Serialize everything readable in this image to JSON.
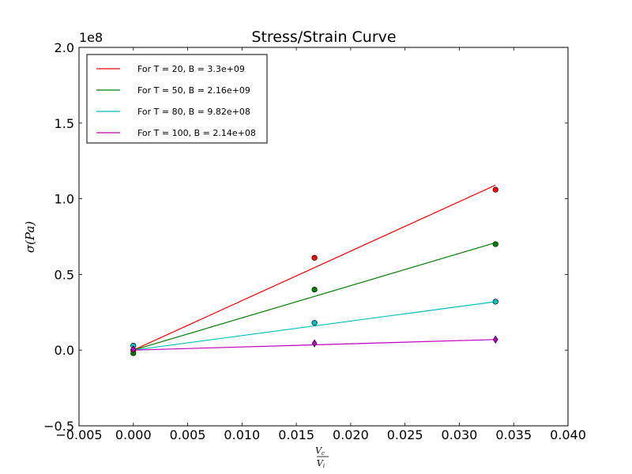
{
  "chart_data": {
    "type": "scatter",
    "title": "Stress/Strain Curve",
    "xlabel": {
      "numerator": "V",
      "numerator_sub": "c",
      "denominator": "V",
      "denominator_sub": "i"
    },
    "ylabel": "σ(Pa)",
    "xlim": [
      -0.005,
      0.04
    ],
    "ylim": [
      -0.5,
      2.0
    ],
    "y_scale_label": "1e8",
    "xticks": [
      "-0.005",
      "0.000",
      "0.005",
      "0.010",
      "0.015",
      "0.020",
      "0.025",
      "0.030",
      "0.035",
      "0.040"
    ],
    "yticks": [
      "-0.5",
      "0.0",
      "0.5",
      "1.0",
      "1.5",
      "2.0"
    ],
    "xtick_values": [
      -0.005,
      0.0,
      0.005,
      0.01,
      0.015,
      0.02,
      0.025,
      0.03,
      0.035,
      0.04
    ],
    "ytick_values": [
      -0.5,
      0.0,
      0.5,
      1.0,
      1.5,
      2.0
    ],
    "grid": false,
    "legend_position": "top-left",
    "series": [
      {
        "name": "For T = 20, B = 3.3e+09",
        "color": "#ff0000",
        "marker": "circle",
        "points": [
          [
            0.0,
            0.0
          ],
          [
            0.01667,
            0.61
          ],
          [
            0.03333,
            1.06
          ]
        ],
        "fit": [
          [
            0.0,
            0.0
          ],
          [
            0.03333,
            1.09
          ]
        ]
      },
      {
        "name": "For T = 50, B = 2.16e+09",
        "color": "#008000",
        "marker": "circle",
        "points": [
          [
            0.0,
            -0.02
          ],
          [
            0.01667,
            0.4
          ],
          [
            0.03333,
            0.7
          ]
        ],
        "fit": [
          [
            0.0,
            0.0
          ],
          [
            0.03333,
            0.71
          ]
        ]
      },
      {
        "name": "For T = 80, B = 9.82e+08",
        "color": "#00bfbf",
        "marker": "circle",
        "points": [
          [
            0.0,
            0.03
          ],
          [
            0.01667,
            0.18
          ],
          [
            0.03333,
            0.32
          ]
        ],
        "fit": [
          [
            0.0,
            0.0
          ],
          [
            0.03333,
            0.32
          ]
        ]
      },
      {
        "name": "For T = 100, B = 2.14e+08",
        "color": "#bf00bf",
        "marker": "diamond",
        "points": [
          [
            0.0,
            0.005
          ],
          [
            0.01667,
            0.045
          ],
          [
            0.03333,
            0.07
          ]
        ],
        "fit": [
          [
            0.0,
            0.0
          ],
          [
            0.03333,
            0.07
          ]
        ]
      }
    ]
  }
}
